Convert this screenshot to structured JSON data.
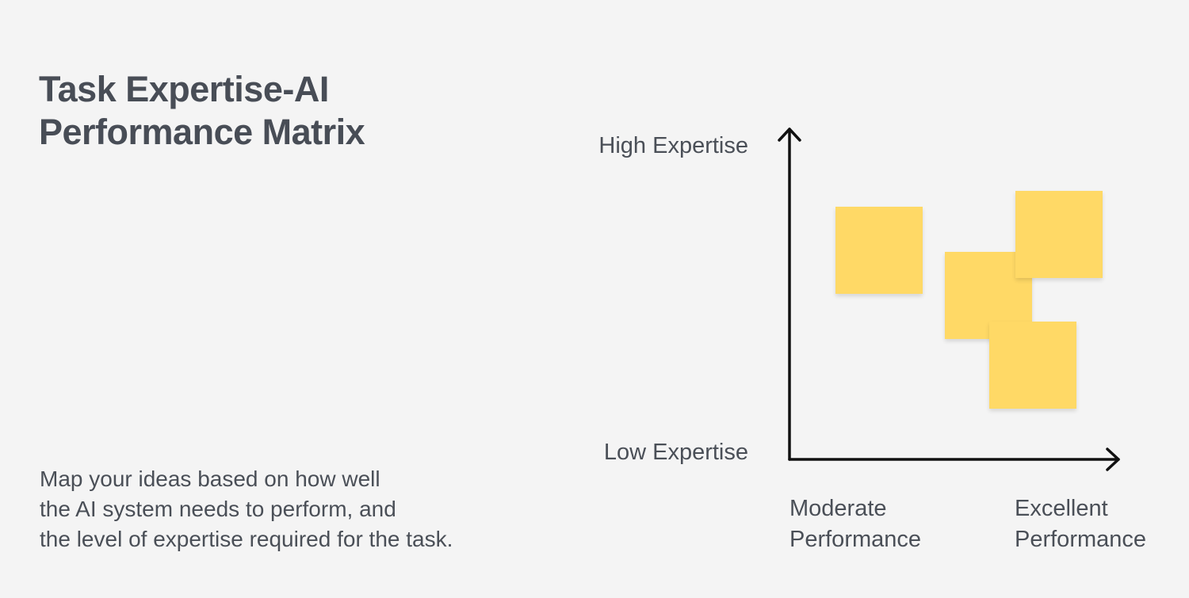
{
  "title": {
    "line1": "Task Expertise-AI",
    "line2": "Performance Matrix"
  },
  "description": {
    "line1": "Map your ideas based on how well",
    "line2": "the AI system needs to perform, and",
    "line3": "the level of expertise required for the task."
  },
  "matrix": {
    "y_axis": {
      "high_label": "High Expertise",
      "low_label": "Low Expertise"
    },
    "x_axis": {
      "moderate_label": {
        "line1": "Moderate",
        "line2": "Performance"
      },
      "excellent_label": {
        "line1": "Excellent",
        "line2": "Performance"
      }
    },
    "sticky_note_color": "#ffd966",
    "axis_color": "#111111"
  }
}
